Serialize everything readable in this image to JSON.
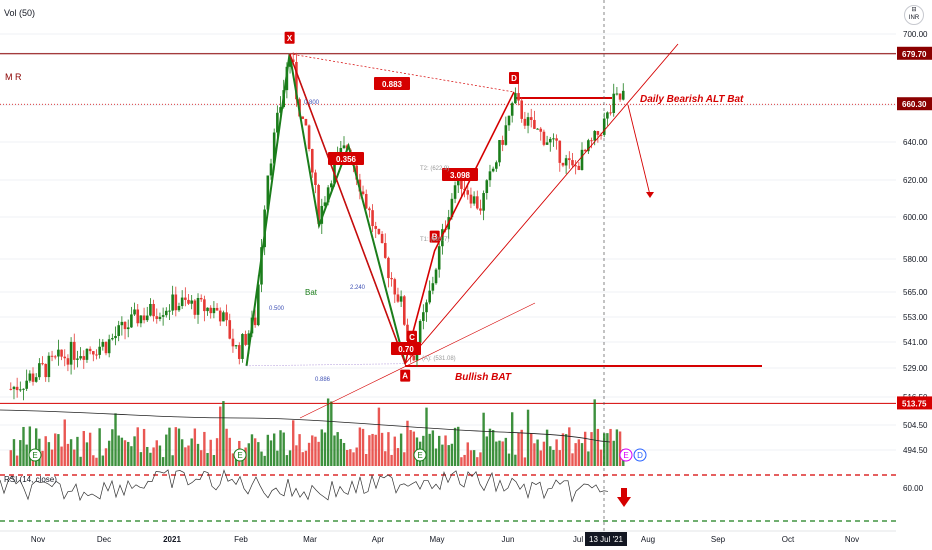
{
  "header": {
    "indicator_label": "Vol (50)",
    "currency": "INR",
    "currency_top": "⊟"
  },
  "theme": {
    "up": "#1b7d1b",
    "down": "#e53935",
    "accent": "#d50000",
    "price_line": "#8b0000",
    "grid": "#e0e3eb"
  },
  "chart_data": {
    "type": "candlestick",
    "title": "",
    "price_axis_ticks": [
      700.0,
      680.0,
      660.0,
      640.0,
      620.0,
      600.0,
      580.0,
      565.0,
      553.0,
      541.0,
      529.0,
      516.5,
      504.5,
      494.5
    ],
    "time_axis_labels": [
      "Nov",
      "Dec",
      "2021",
      "Feb",
      "Mar",
      "Apr",
      "May",
      "Jun",
      "Jul",
      "Aug",
      "Sep",
      "Oct",
      "Nov"
    ],
    "current_date_label": "13 Jul '21",
    "price_badges": [
      {
        "value": "679.70",
        "price": 679.7,
        "color": "#8b0000"
      },
      {
        "value": "660.30",
        "price": 660.3,
        "color": "#8b0000"
      },
      {
        "value": "513.75",
        "price": 513.75,
        "color": "#d50000"
      }
    ],
    "rsi": {
      "label": "RSI (14, close)",
      "tick": "60.00"
    },
    "price_path": [
      [
        "2020-10-20",
        520
      ],
      [
        "2020-11-01",
        527
      ],
      [
        "2020-11-15",
        536
      ],
      [
        "2020-12-01",
        540
      ],
      [
        "2020-12-15",
        553
      ],
      [
        "2021-01-01",
        560
      ],
      [
        "2021-01-10",
        558
      ],
      [
        "2021-01-20",
        556
      ],
      [
        "2021-01-28",
        536
      ],
      [
        "2021-02-05",
        552
      ],
      [
        "2021-02-10",
        622
      ],
      [
        "2021-02-16",
        660
      ],
      [
        "2021-02-20",
        679.7
      ],
      [
        "2021-02-28",
        640
      ],
      [
        "2021-03-05",
        600
      ],
      [
        "2021-03-12",
        630
      ],
      [
        "2021-03-18",
        638
      ],
      [
        "2021-03-25",
        610
      ],
      [
        "2021-04-01",
        585
      ],
      [
        "2021-04-10",
        560
      ],
      [
        "2021-04-15",
        533
      ],
      [
        "2021-04-22",
        560
      ],
      [
        "2021-04-27",
        584
      ],
      [
        "2021-05-05",
        622
      ],
      [
        "2021-05-15",
        605
      ],
      [
        "2021-05-22",
        630
      ],
      [
        "2021-05-30",
        662
      ],
      [
        "2021-06-05",
        650
      ],
      [
        "2021-06-15",
        640
      ],
      [
        "2021-06-25",
        625
      ],
      [
        "2021-07-05",
        642
      ],
      [
        "2021-07-13",
        660
      ],
      [
        "2021-07-18",
        664
      ]
    ],
    "pattern_points": {
      "bat_green": [
        {
          "date": "2021-02-01",
          "price": 530
        },
        {
          "date": "2021-02-20",
          "price": 679.7
        },
        {
          "date": "2021-03-05",
          "price": 596
        },
        {
          "date": "2021-03-18",
          "price": 638
        },
        {
          "date": "2021-04-12",
          "price": 531
        }
      ],
      "alt_bat_red": [
        {
          "name": "X",
          "date": "2021-02-20",
          "price": 679.7
        },
        {
          "name": "A",
          "date": "2021-04-12",
          "price": 531
        },
        {
          "name": "B",
          "date": "2021-04-25",
          "price": 584
        },
        {
          "name": "C",
          "date": "2021-04-15",
          "price": 544
        },
        {
          "name": "D",
          "date": "2021-05-30",
          "price": 665
        }
      ]
    },
    "annotations": [
      {
        "text": "X",
        "kind": "point"
      },
      {
        "text": "D",
        "kind": "point"
      },
      {
        "text": "B",
        "kind": "point"
      },
      {
        "text": "A",
        "kind": "point"
      },
      {
        "text": "C",
        "kind": "point"
      },
      {
        "text": "0.883",
        "kind": "ratio"
      },
      {
        "text": "0.356",
        "kind": "ratio"
      },
      {
        "text": "3.098",
        "kind": "ratio"
      },
      {
        "text": "0.70",
        "kind": "ratio"
      },
      {
        "text": "0.500",
        "kind": "dotted-ratio"
      },
      {
        "text": "0.886",
        "kind": "dotted-ratio"
      },
      {
        "text": "2.240",
        "kind": "dotted-ratio"
      },
      {
        "text": "0.800",
        "kind": "dotted-ratio"
      },
      {
        "text": "Bat",
        "kind": "pattern-name"
      },
      {
        "text": "Daily Bearish ALT Bat",
        "kind": "callout"
      },
      {
        "text": "Bullish BAT",
        "kind": "callout"
      },
      {
        "text": "M R",
        "kind": "level-label"
      },
      {
        "text": "T2: (622.9)",
        "kind": "target"
      },
      {
        "text": "T1: (593.7)",
        "kind": "target"
      },
      {
        "text": "(A): (531.08)",
        "kind": "target"
      }
    ],
    "event_markers": [
      "E",
      "E",
      "E",
      "E",
      "D"
    ],
    "grid": true
  }
}
